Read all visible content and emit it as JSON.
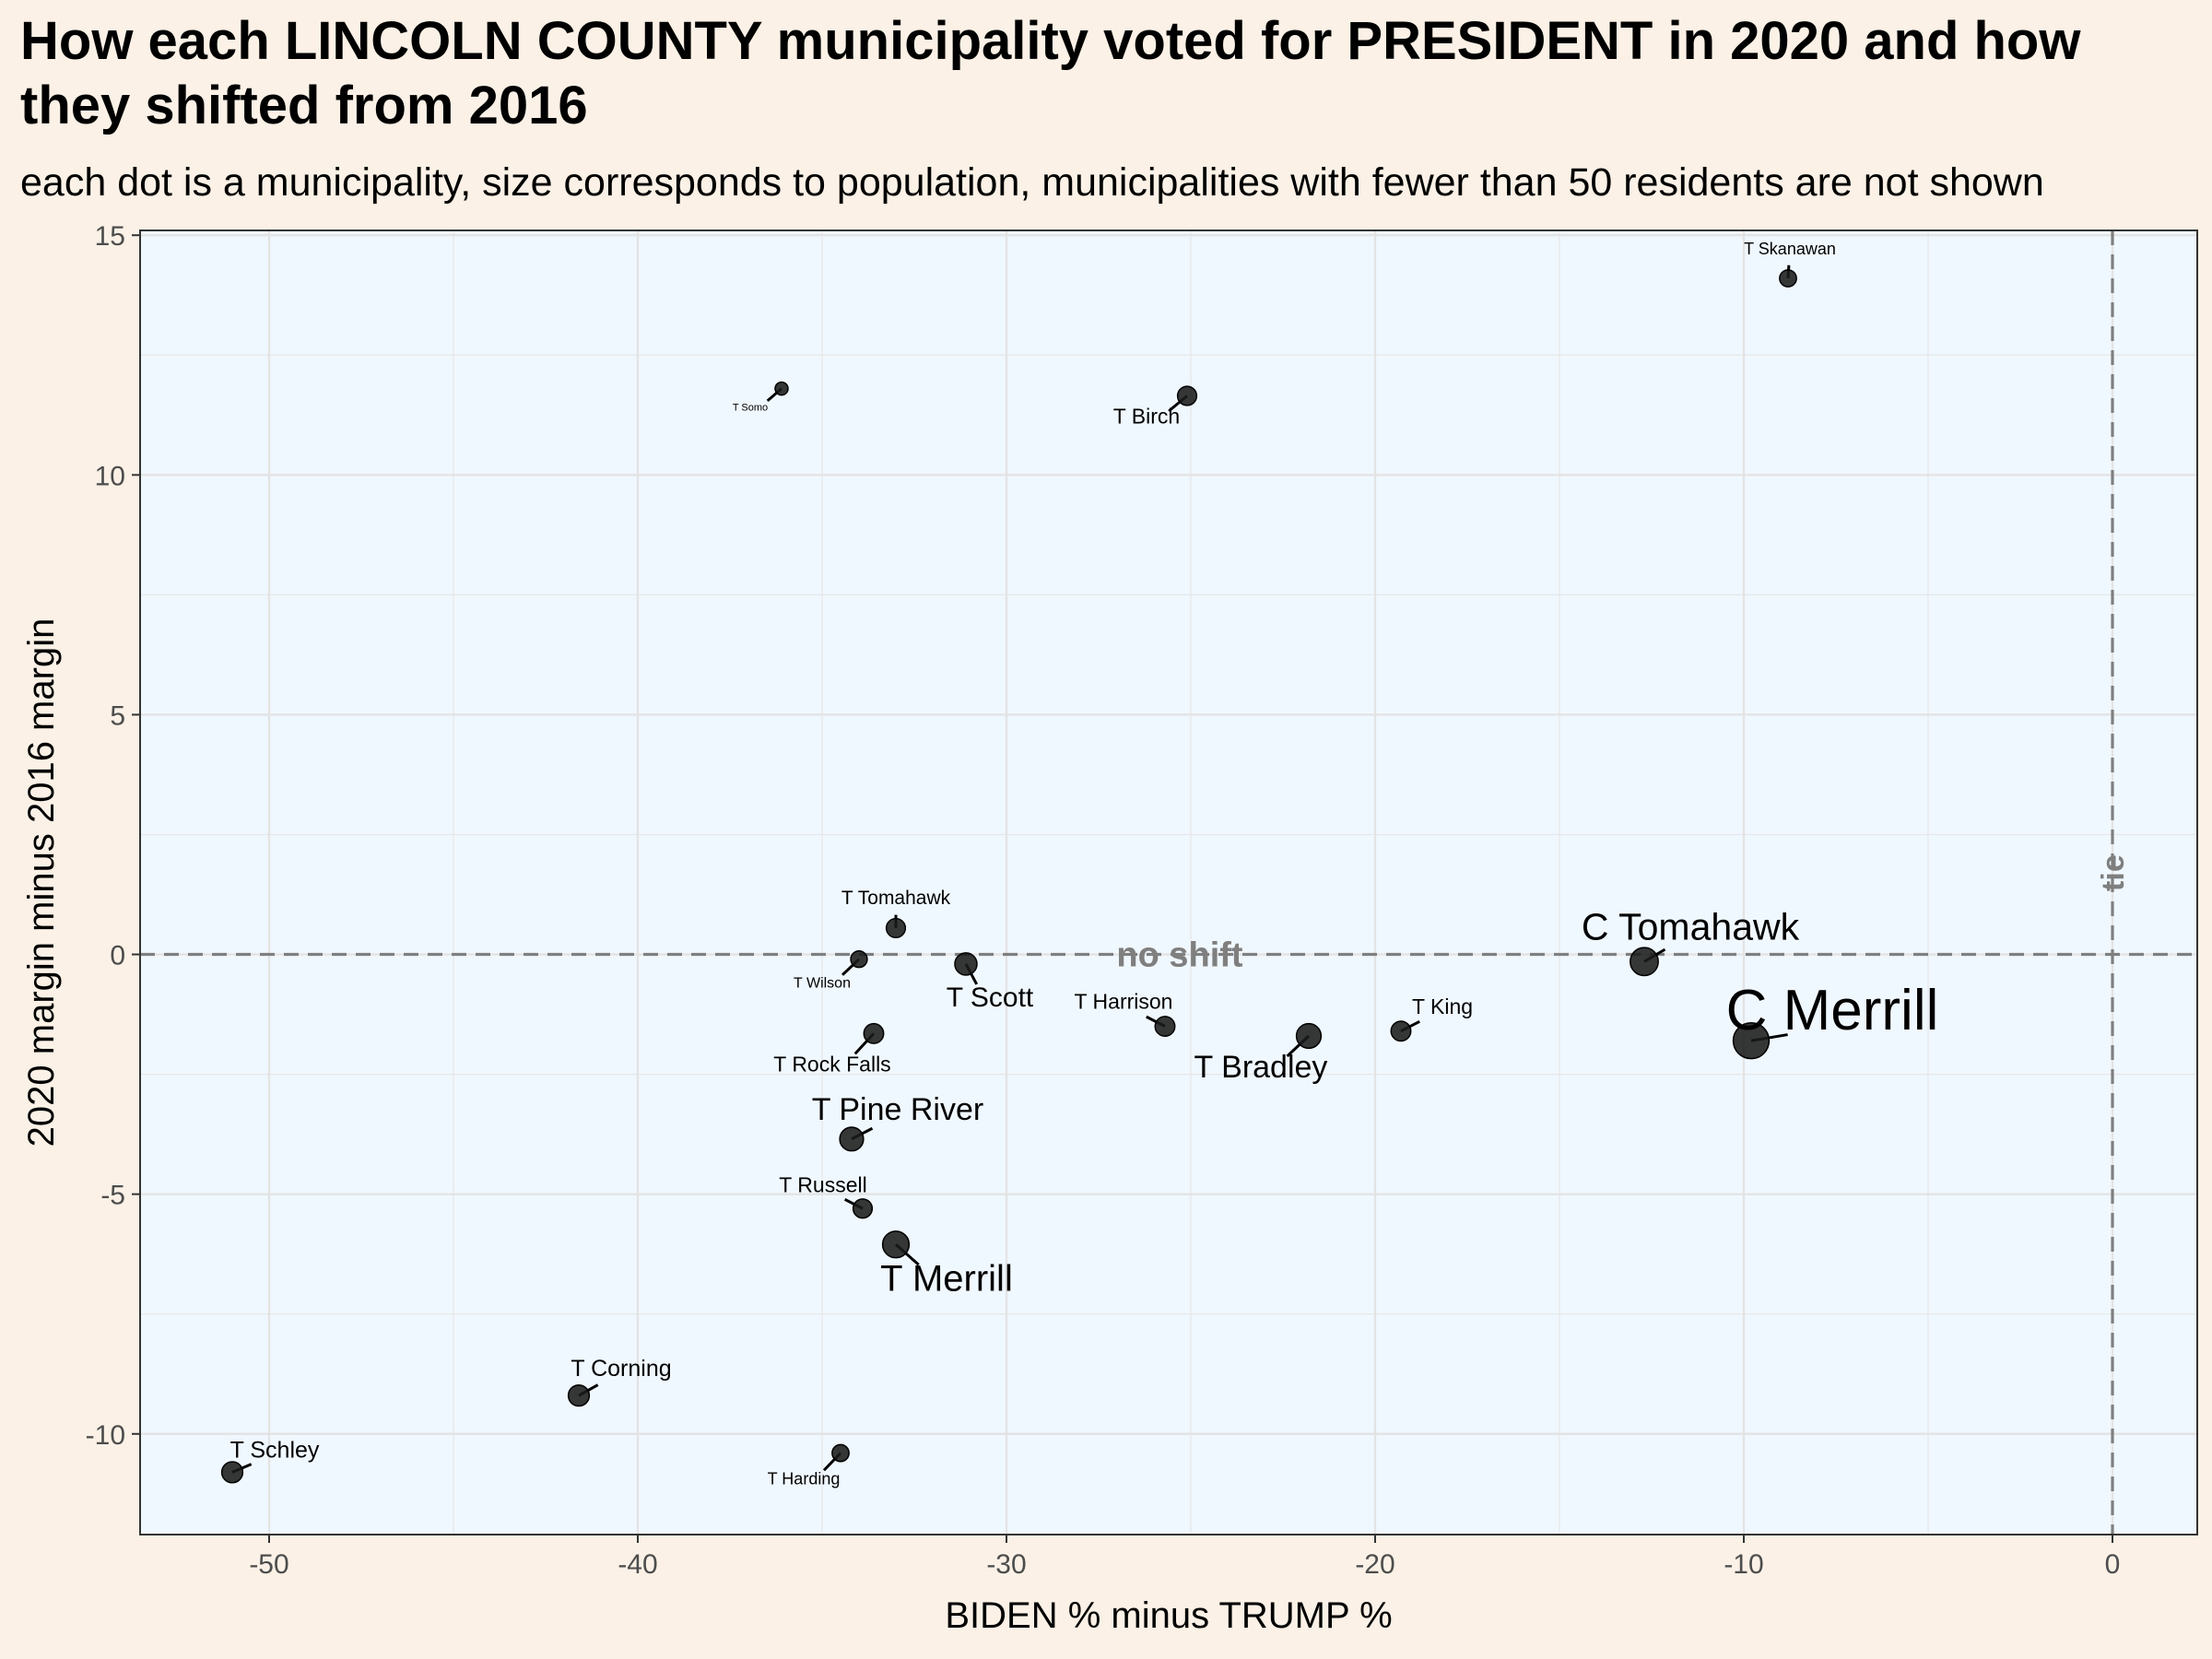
{
  "chart_data": {
    "type": "scatter",
    "title": "How each LINCOLN COUNTY municipality voted for PRESIDENT in 2020 and how they shifted from 2016",
    "subtitle": "each dot is a municipality, size corresponds to population, municipalities with fewer than 50 residents are not shown",
    "xlabel": "BIDEN % minus TRUMP %",
    "ylabel": "2020 margin minus 2016 margin",
    "xlim": [
      -53.5,
      2.3
    ],
    "ylim": [
      -12.1,
      15.1
    ],
    "x_ticks": [
      -50,
      -40,
      -30,
      -20,
      -10,
      0
    ],
    "y_ticks": [
      -10,
      -5,
      0,
      5,
      10,
      15
    ],
    "grid": true,
    "panel_background": "#f0f8ff",
    "page_background": "#fbf1e6",
    "point_color": "#1a1a1a",
    "reference_lines": [
      {
        "axis": "y",
        "value": 0,
        "label": "no shift",
        "style": "dashed"
      },
      {
        "axis": "x",
        "value": 0,
        "label": "tie",
        "style": "dashed"
      }
    ],
    "points": [
      {
        "name": "T Skanawan",
        "x": -8.8,
        "y": 14.1,
        "size": 1.4
      },
      {
        "name": "T Somo",
        "x": -36.1,
        "y": 11.8,
        "size": 0.6
      },
      {
        "name": "T Birch",
        "x": -25.1,
        "y": 11.65,
        "size": 2.0
      },
      {
        "name": "T Tomahawk",
        "x": -33.0,
        "y": 0.55,
        "size": 2.0
      },
      {
        "name": "T Wilson",
        "x": -34.0,
        "y": -0.1,
        "size": 1.3
      },
      {
        "name": "T Scott",
        "x": -31.1,
        "y": -0.2,
        "size": 3.0
      },
      {
        "name": "T Harrison",
        "x": -25.7,
        "y": -1.5,
        "size": 2.2
      },
      {
        "name": "T Bradley",
        "x": -21.8,
        "y": -1.7,
        "size": 4.0
      },
      {
        "name": "T King",
        "x": -19.3,
        "y": -1.6,
        "size": 2.2
      },
      {
        "name": "C Tomahawk",
        "x": -12.7,
        "y": -0.15,
        "size": 5.5
      },
      {
        "name": "C Merrill",
        "x": -9.8,
        "y": -1.8,
        "size": 10.0
      },
      {
        "name": "T Rock Falls",
        "x": -33.6,
        "y": -1.65,
        "size": 2.2
      },
      {
        "name": "T Pine River",
        "x": -34.2,
        "y": -3.85,
        "size": 3.6
      },
      {
        "name": "T Russell",
        "x": -33.9,
        "y": -5.3,
        "size": 2.0
      },
      {
        "name": "T Merrill",
        "x": -33.0,
        "y": -6.05,
        "size": 4.8
      },
      {
        "name": "T Corning",
        "x": -41.6,
        "y": -9.2,
        "size": 2.6
      },
      {
        "name": "T Schley",
        "x": -51.0,
        "y": -10.8,
        "size": 2.6
      },
      {
        "name": "T Harding",
        "x": -34.5,
        "y": -10.4,
        "size": 1.4
      }
    ]
  }
}
